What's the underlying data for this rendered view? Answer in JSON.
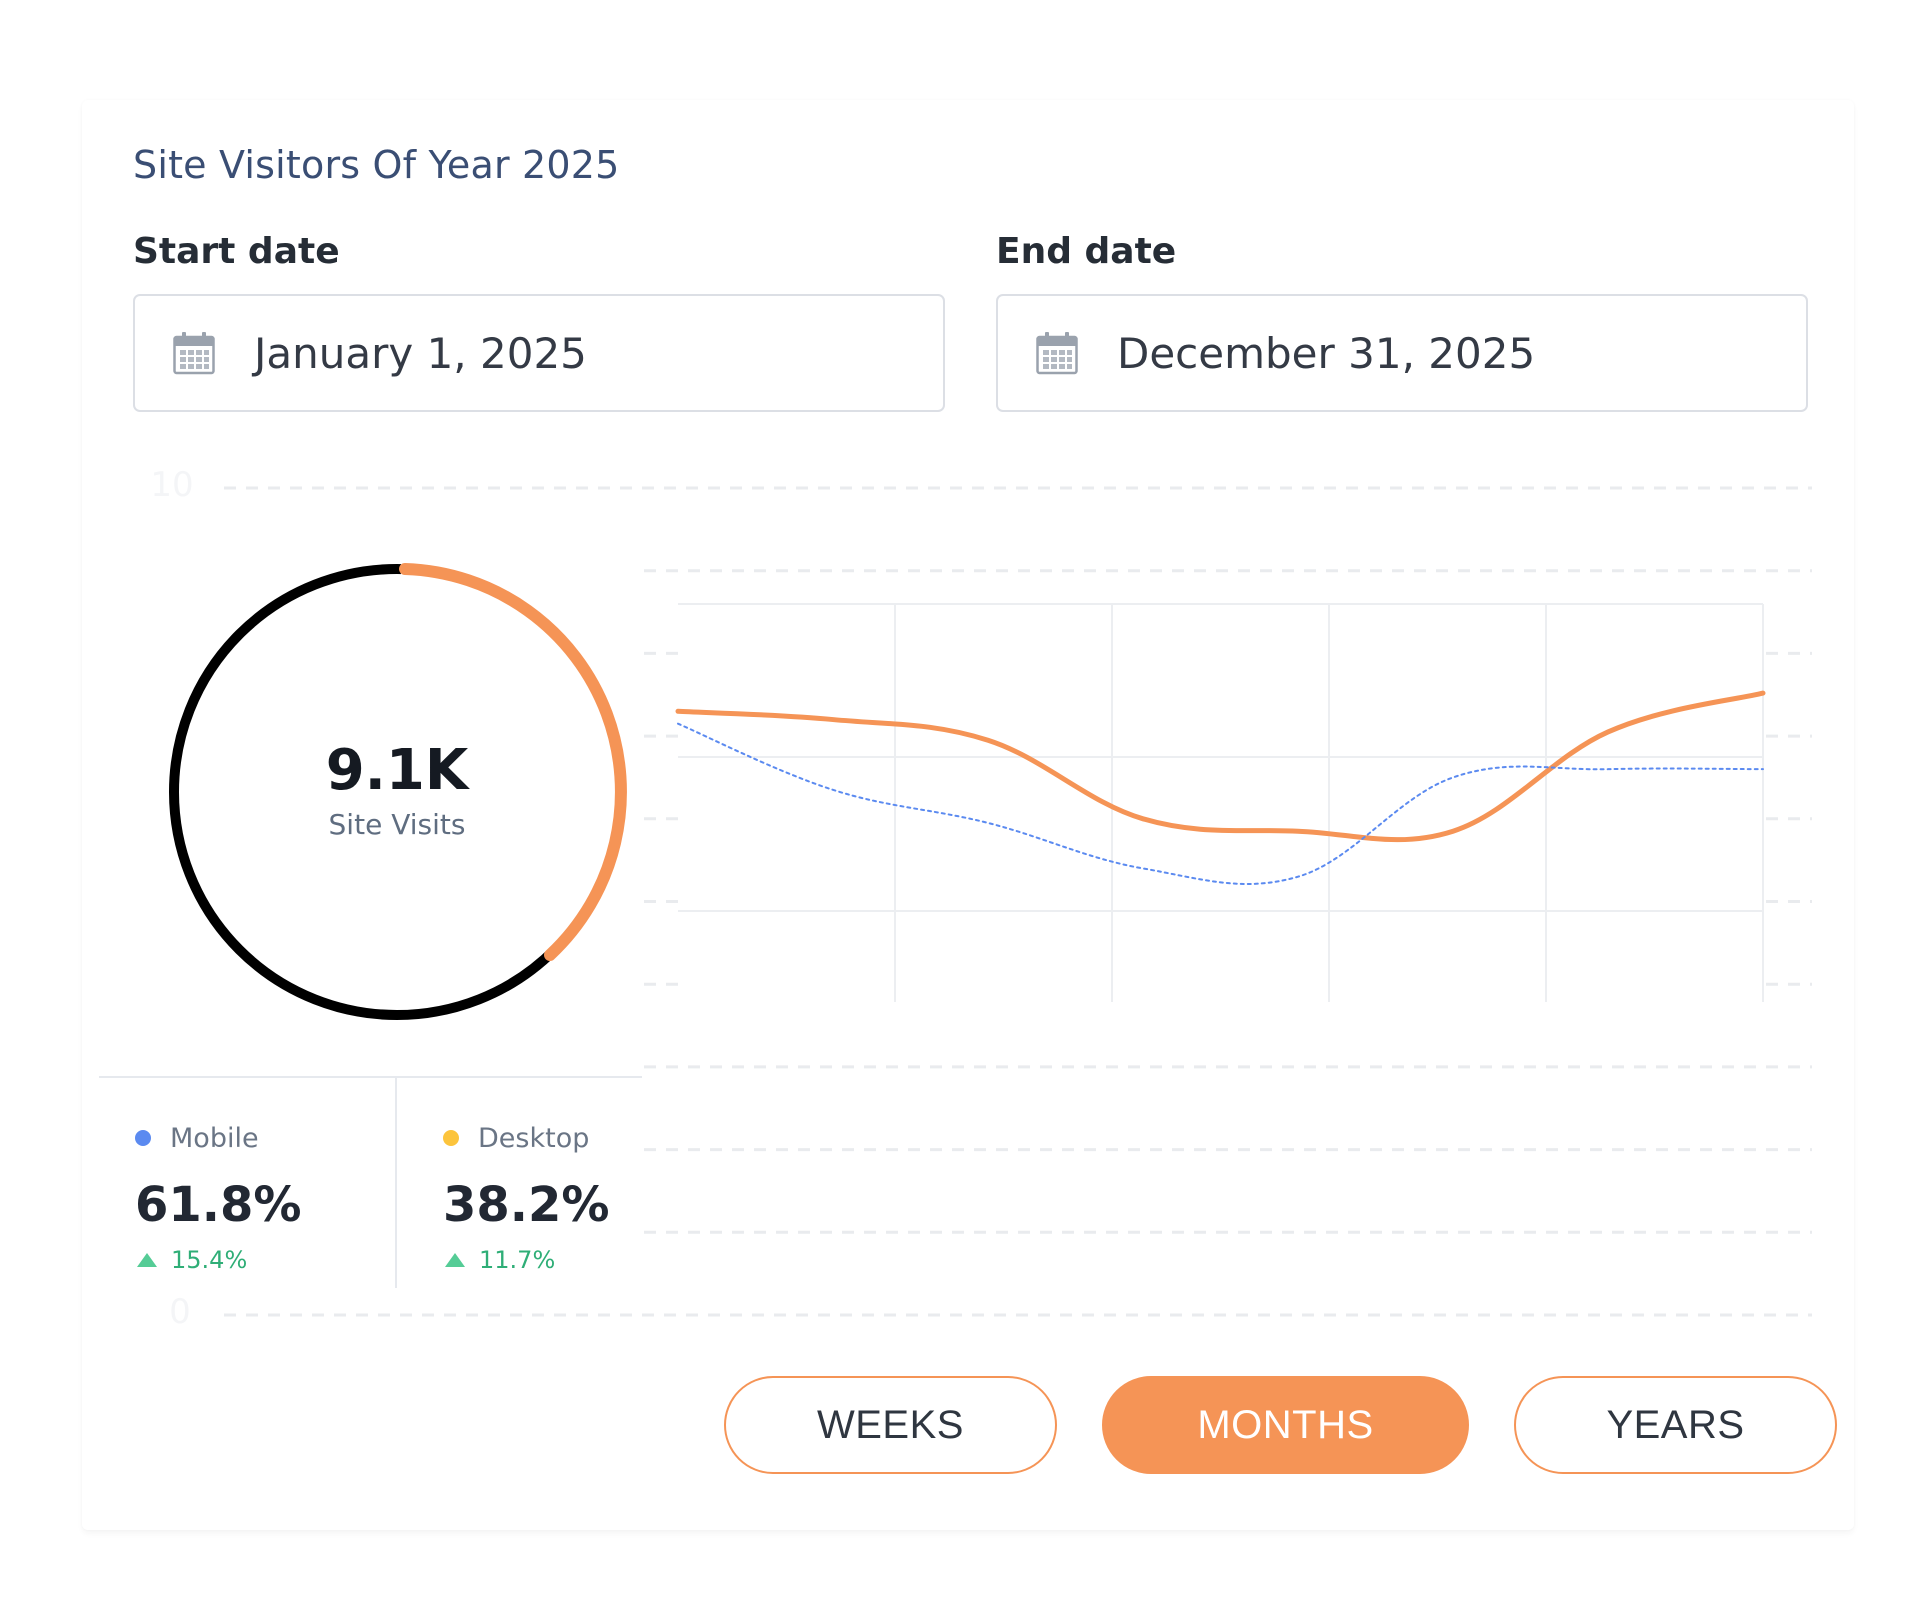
{
  "card": {
    "title": "Site Visitors Of Year 2025"
  },
  "start_date": {
    "label": "Start date",
    "value": "January 1, 2025",
    "icon": "calendar-icon"
  },
  "end_date": {
    "label": "End date",
    "value": "December 31, 2025",
    "icon": "calendar-icon"
  },
  "gauge": {
    "value": "9.1K",
    "label": "Site Visits",
    "colors": {
      "track": "#000000",
      "accent": "#f59456"
    }
  },
  "stats": [
    {
      "name": "Mobile",
      "value": "61.8%",
      "change": "15.4%",
      "dot_color": "#5b8af0"
    },
    {
      "name": "Desktop",
      "value": "38.2%",
      "change": "11.7%",
      "dot_color": "#fcc43c"
    }
  ],
  "period_buttons": [
    {
      "label": "WEEKS",
      "active": false
    },
    {
      "label": "MONTHS",
      "active": true
    },
    {
      "label": "YEARS",
      "active": false
    }
  ],
  "chart_data": {
    "type": "line",
    "y_ticks": [
      "10",
      "0"
    ],
    "ylim": [
      0,
      10
    ],
    "grid": true,
    "series": [
      {
        "values": [
          7.3,
          7.2,
          6.95,
          6.0,
          5.85,
          5.85,
          7.05,
          7.52
        ],
        "color": "#f59456",
        "style": "solid"
      },
      {
        "values": [
          7.15,
          6.35,
          5.95,
          5.4,
          5.3,
          6.5,
          6.6,
          6.6
        ],
        "color": "#5b8af0",
        "style": "dotted"
      }
    ]
  }
}
